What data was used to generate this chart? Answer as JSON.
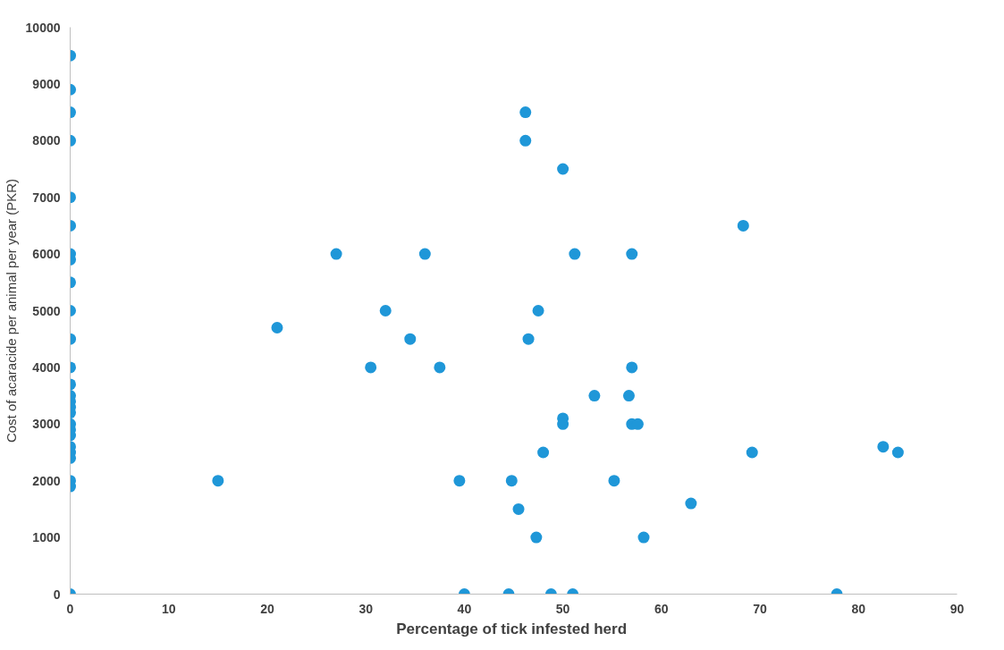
{
  "chart_data": {
    "type": "scatter",
    "xlabel": "Percentage of tick infested  herd",
    "ylabel": "Cost of acaracide per animal per year (PKR)",
    "xlim": [
      0,
      90
    ],
    "xticks": [
      0,
      10,
      20,
      30,
      40,
      50,
      60,
      70,
      80,
      90
    ],
    "ylim": [
      0,
      10000
    ],
    "yticks": [
      0,
      1000,
      2000,
      3000,
      4000,
      5000,
      6000,
      7000,
      8000,
      9000,
      10000
    ],
    "grid": false,
    "marker": "circle",
    "series": [
      {
        "color": "#1f97d8",
        "x": [
          0,
          0,
          0,
          0,
          0,
          0,
          0,
          0,
          0,
          0,
          0,
          0,
          0,
          0,
          0,
          0,
          0,
          0,
          0,
          0,
          0,
          0,
          0,
          0,
          0,
          0,
          15,
          21,
          27,
          30.5,
          32,
          34.5,
          36,
          37.5,
          39.5,
          40,
          44.5,
          44.8,
          45.5,
          46.2,
          46.2,
          46.5,
          47.3,
          47.5,
          48,
          48.8,
          50,
          50,
          50,
          51,
          51.2,
          53.2,
          55.2,
          56.7,
          57,
          57,
          57,
          57.6,
          58.2,
          63,
          68.3,
          69.2,
          77.8,
          82.5,
          84
        ],
        "values": [
          9500,
          8900,
          8500,
          8000,
          7000,
          6500,
          6000,
          5900,
          5500,
          5000,
          4500,
          4000,
          3700,
          3500,
          3400,
          3300,
          3200,
          3000,
          2900,
          2800,
          2600,
          2500,
          2400,
          2000,
          1900,
          0,
          2000,
          4700,
          6000,
          4000,
          5000,
          4500,
          6000,
          4000,
          2000,
          0,
          0,
          2000,
          1500,
          8500,
          8000,
          4500,
          1000,
          5000,
          2500,
          0,
          7500,
          3100,
          3000,
          0,
          6000,
          3500,
          2000,
          3500,
          6000,
          4000,
          3000,
          3000,
          1000,
          1600,
          6500,
          2500,
          0,
          2600,
          2500
        ]
      }
    ]
  }
}
